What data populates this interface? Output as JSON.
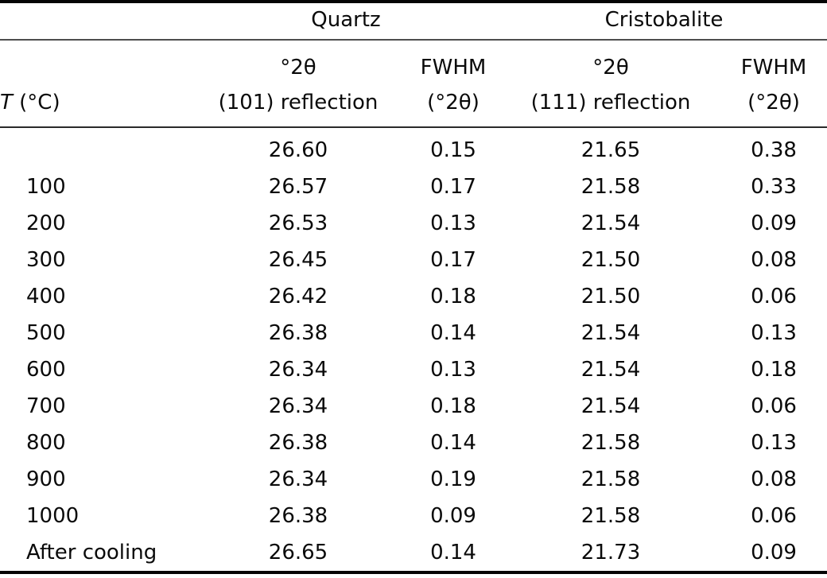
{
  "colors": {
    "background": "#ffffff",
    "text": "#0a0a0a",
    "rule_heavy": "#050505",
    "rule_light": "#4d4d4d"
  },
  "table": {
    "group_headers": {
      "quartz": "Quartz",
      "cristobalite": "Cristobalite"
    },
    "columns": {
      "t": {
        "symbol": "T",
        "unit": " (°C)"
      },
      "q_2theta": {
        "line1": "°2θ",
        "line2": "(101) reflection"
      },
      "q_fwhm": {
        "line1": "FWHM",
        "line2": "(°2θ)"
      },
      "c_2theta": {
        "line1": "°2θ",
        "line2": "(111) reflection"
      },
      "c_fwhm": {
        "line1": "FWHM",
        "line2": "(°2θ)"
      }
    },
    "rows": [
      {
        "t": "",
        "q_2theta": "26.60",
        "q_fwhm": "0.15",
        "c_2theta": "21.65",
        "c_fwhm": "0.38"
      },
      {
        "t": "100",
        "q_2theta": "26.57",
        "q_fwhm": "0.17",
        "c_2theta": "21.58",
        "c_fwhm": "0.33"
      },
      {
        "t": "200",
        "q_2theta": "26.53",
        "q_fwhm": "0.13",
        "c_2theta": "21.54",
        "c_fwhm": "0.09"
      },
      {
        "t": "300",
        "q_2theta": "26.45",
        "q_fwhm": "0.17",
        "c_2theta": "21.50",
        "c_fwhm": "0.08"
      },
      {
        "t": "400",
        "q_2theta": "26.42",
        "q_fwhm": "0.18",
        "c_2theta": "21.50",
        "c_fwhm": "0.06"
      },
      {
        "t": "500",
        "q_2theta": "26.38",
        "q_fwhm": "0.14",
        "c_2theta": "21.54",
        "c_fwhm": "0.13"
      },
      {
        "t": "600",
        "q_2theta": "26.34",
        "q_fwhm": "0.13",
        "c_2theta": "21.54",
        "c_fwhm": "0.18"
      },
      {
        "t": "700",
        "q_2theta": "26.34",
        "q_fwhm": "0.18",
        "c_2theta": "21.54",
        "c_fwhm": "0.06"
      },
      {
        "t": "800",
        "q_2theta": "26.38",
        "q_fwhm": "0.14",
        "c_2theta": "21.58",
        "c_fwhm": "0.13"
      },
      {
        "t": "900",
        "q_2theta": "26.34",
        "q_fwhm": "0.19",
        "c_2theta": "21.58",
        "c_fwhm": "0.08"
      },
      {
        "t": "1000",
        "q_2theta": "26.38",
        "q_fwhm": "0.09",
        "c_2theta": "21.58",
        "c_fwhm": "0.06"
      },
      {
        "t": "After cooling",
        "q_2theta": "26.65",
        "q_fwhm": "0.14",
        "c_2theta": "21.73",
        "c_fwhm": "0.09"
      }
    ]
  }
}
